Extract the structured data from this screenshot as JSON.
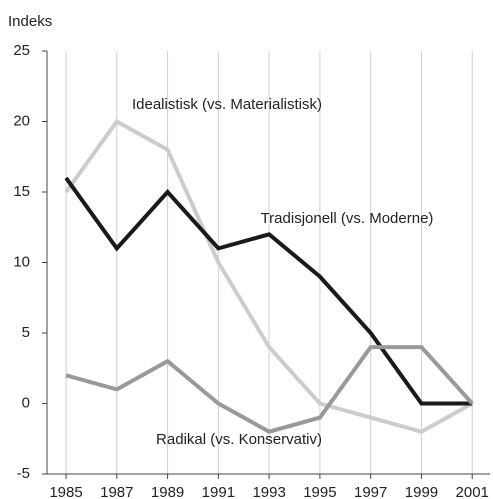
{
  "chart_data": {
    "type": "line",
    "y_axis_label": "Indeks",
    "x": [
      1985,
      1987,
      1989,
      1991,
      1993,
      1995,
      1997,
      1999,
      2001
    ],
    "xlim": [
      1984.25,
      2001.7
    ],
    "xticks": [
      1985,
      1987,
      1989,
      1991,
      1993,
      1995,
      1997,
      1999,
      2001
    ],
    "ylim": [
      -5,
      25
    ],
    "yticks": [
      -5,
      0,
      5,
      10,
      15,
      20,
      25
    ],
    "grid": "x",
    "series": [
      {
        "name": "Idealistisk (vs. Materialistisk)",
        "color": "#cccccc",
        "values": [
          15,
          20,
          18,
          10,
          4,
          0,
          -1,
          -2,
          0
        ]
      },
      {
        "name": "Tradisjonell (vs. Moderne)",
        "color": "#1a1a1a",
        "values": [
          16,
          11,
          15,
          11,
          12,
          9,
          5,
          0,
          0
        ]
      },
      {
        "name": "Radikal (vs. Konservativ)",
        "color": "#999999",
        "values": [
          2,
          1,
          3,
          0,
          -2,
          -1,
          4,
          4,
          0
        ]
      }
    ]
  }
}
